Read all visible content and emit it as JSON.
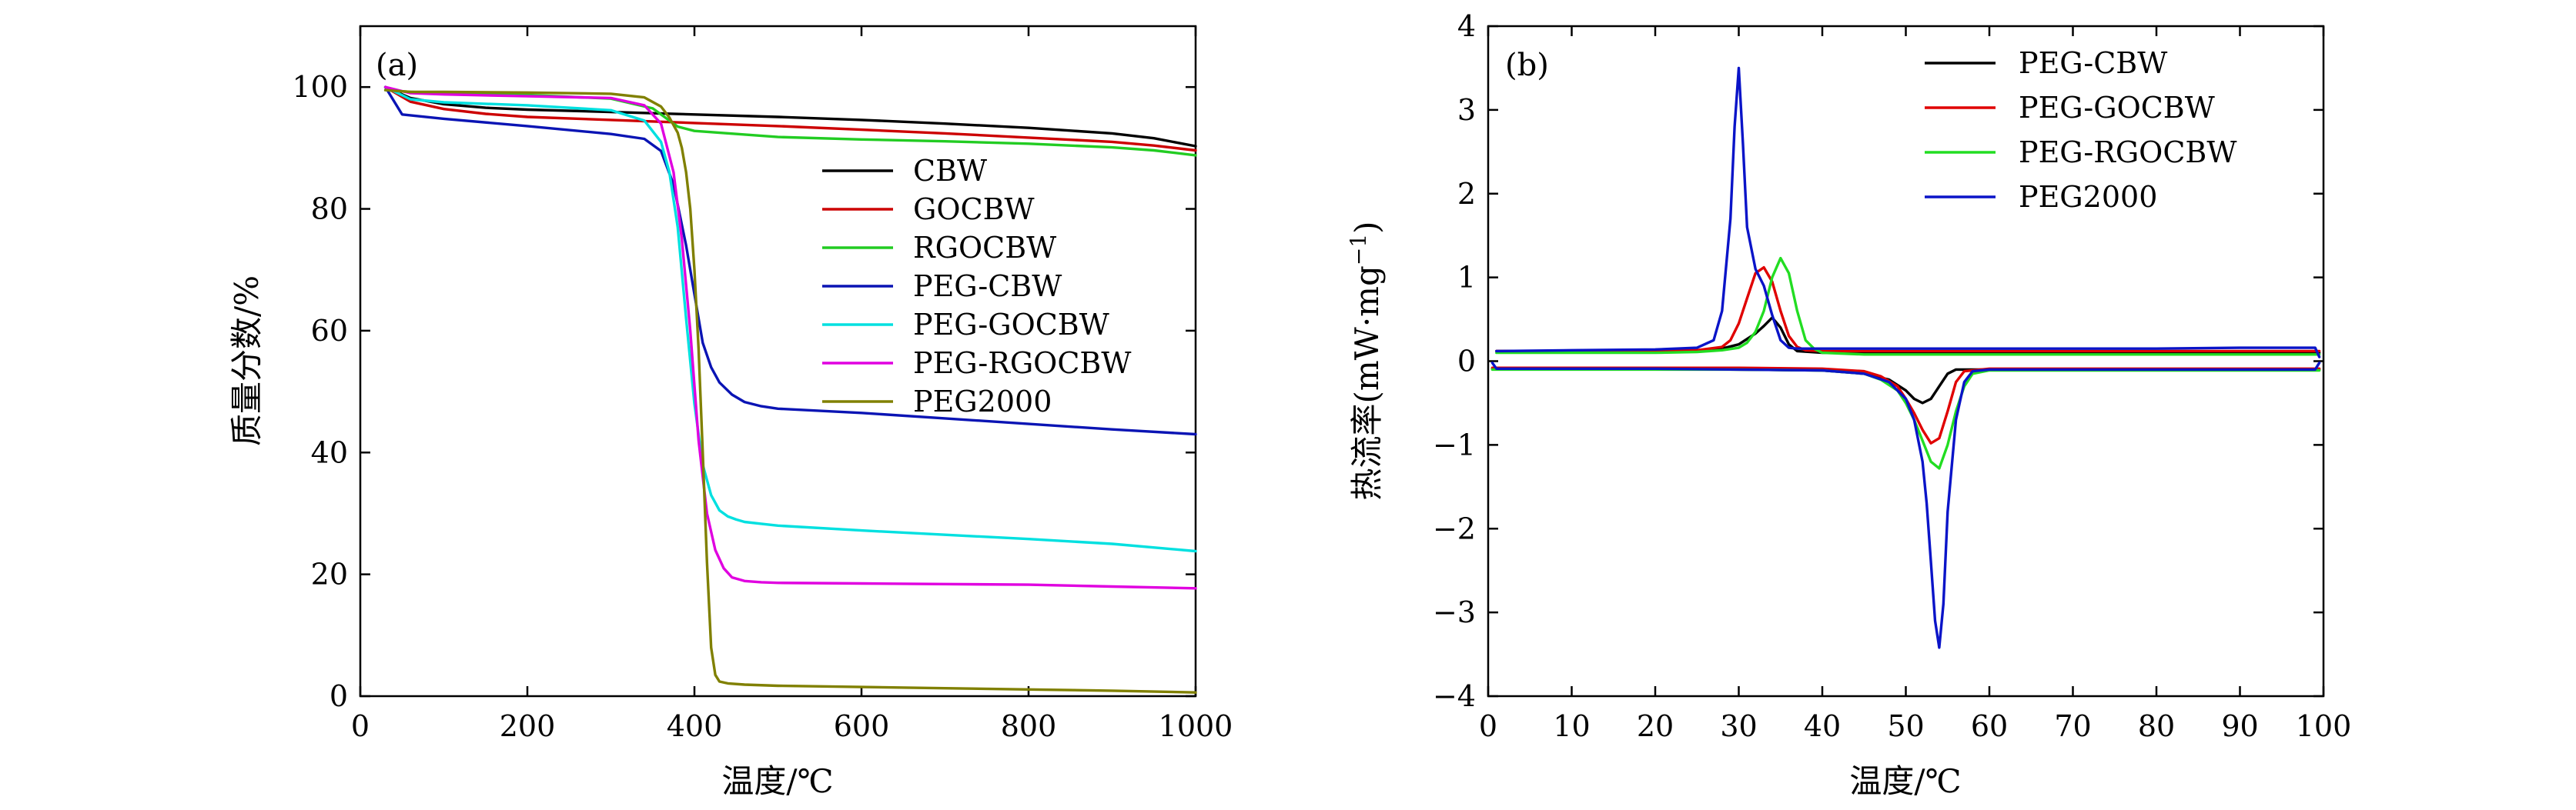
{
  "chart_data": [
    {
      "type": "line",
      "panel_label": "(a)",
      "xlabel": "温度/℃",
      "ylabel": "质量分数/%",
      "xlim": [
        0,
        1000
      ],
      "ylim": [
        0,
        110
      ],
      "xticks": [
        0,
        200,
        400,
        600,
        800,
        1000
      ],
      "yticks": [
        0,
        20,
        40,
        60,
        80,
        100
      ],
      "grid": false,
      "legend_position": "center-right",
      "series": [
        {
          "name": "CBW",
          "color": "#000000",
          "x": [
            30,
            60,
            100,
            150,
            200,
            300,
            400,
            500,
            600,
            700,
            800,
            900,
            950,
            1000
          ],
          "y": [
            100,
            98.2,
            97.2,
            96.6,
            96.3,
            95.9,
            95.5,
            95.1,
            94.6,
            94.0,
            93.3,
            92.4,
            91.6,
            90.3
          ]
        },
        {
          "name": "GOCBW",
          "color": "#cc0000",
          "x": [
            30,
            60,
            100,
            150,
            200,
            300,
            400,
            500,
            600,
            700,
            800,
            900,
            950,
            1000
          ],
          "y": [
            100,
            97.6,
            96.4,
            95.6,
            95.1,
            94.6,
            94.1,
            93.6,
            93.0,
            92.4,
            91.7,
            91.0,
            90.4,
            89.6
          ]
        },
        {
          "name": "RGOCBW",
          "color": "#22cc22",
          "x": [
            30,
            60,
            100,
            200,
            300,
            350,
            380,
            400,
            500,
            600,
            700,
            800,
            900,
            950,
            1000
          ],
          "y": [
            99.5,
            99.2,
            99.0,
            98.7,
            98.1,
            96.5,
            93.5,
            92.8,
            91.8,
            91.4,
            91.1,
            90.7,
            90.1,
            89.6,
            88.8
          ]
        },
        {
          "name": "PEG-CBW",
          "color": "#0a14b4",
          "x": [
            30,
            50,
            100,
            200,
            300,
            340,
            360,
            375,
            390,
            400,
            410,
            420,
            430,
            445,
            460,
            480,
            500,
            600,
            700,
            800,
            900,
            1000
          ],
          "y": [
            100,
            95.5,
            94.8,
            93.6,
            92.3,
            91.5,
            89.5,
            84.0,
            74.0,
            66.0,
            58.0,
            54.0,
            51.5,
            49.5,
            48.3,
            47.6,
            47.2,
            46.5,
            45.6,
            44.7,
            43.8,
            43.0
          ]
        },
        {
          "name": "PEG-GOCBW",
          "color": "#00e0e0",
          "x": [
            30,
            60,
            100,
            200,
            300,
            340,
            360,
            370,
            380,
            390,
            400,
            410,
            420,
            430,
            440,
            450,
            460,
            480,
            500,
            600,
            700,
            800,
            900,
            1000
          ],
          "y": [
            100,
            98.0,
            97.5,
            97.0,
            96.2,
            94.5,
            91.0,
            86.0,
            77.0,
            62.0,
            48.0,
            38.0,
            33.0,
            30.5,
            29.5,
            29.0,
            28.6,
            28.3,
            28.0,
            27.2,
            26.5,
            25.8,
            25.0,
            23.8
          ]
        },
        {
          "name": "PEG-RGOCBW",
          "color": "#e000e0",
          "x": [
            30,
            60,
            100,
            200,
            300,
            340,
            360,
            375,
            385,
            395,
            405,
            415,
            425,
            435,
            445,
            460,
            480,
            500,
            600,
            700,
            800,
            900,
            1000
          ],
          "y": [
            100,
            99.0,
            98.8,
            98.5,
            98.2,
            97.0,
            94.0,
            86.0,
            75.0,
            60.0,
            42.0,
            30.0,
            24.0,
            21.0,
            19.5,
            18.9,
            18.7,
            18.6,
            18.5,
            18.4,
            18.3,
            18.0,
            17.7
          ]
        },
        {
          "name": "PEG2000",
          "color": "#808000",
          "x": [
            30,
            60,
            100,
            200,
            300,
            340,
            360,
            370,
            380,
            385,
            390,
            395,
            400,
            405,
            410,
            415,
            420,
            425,
            430,
            440,
            460,
            500,
            600,
            700,
            800,
            900,
            1000
          ],
          "y": [
            99.5,
            99.2,
            99.2,
            99.1,
            98.9,
            98.3,
            96.8,
            95.0,
            92.5,
            90.0,
            86.0,
            80.0,
            70.0,
            57.0,
            40.0,
            22.0,
            8.0,
            3.5,
            2.4,
            2.1,
            1.9,
            1.7,
            1.5,
            1.3,
            1.1,
            0.9,
            0.6
          ]
        }
      ]
    },
    {
      "type": "line",
      "panel_label": "(b)",
      "xlabel": "温度/℃",
      "ylabel": "热流率(mW·mg",
      "ylabel_sup": "−1",
      "ylabel_tail": ")",
      "xlim": [
        0,
        100
      ],
      "ylim": [
        -4,
        4
      ],
      "xticks": [
        0,
        10,
        20,
        30,
        40,
        50,
        60,
        70,
        80,
        90,
        100
      ],
      "yticks": [
        -4,
        -3,
        -2,
        -1,
        0,
        1,
        2,
        3,
        4
      ],
      "ytick_labels": [
        "−4",
        "−3",
        "−2",
        "−1",
        "0",
        "1",
        "2",
        "3",
        "4"
      ],
      "grid": false,
      "legend_position": "top-right",
      "series": [
        {
          "name": "PEG-CBW",
          "color": "#000000",
          "segments": [
            {
              "x": [
                1,
                10,
                20,
                25,
                28,
                30,
                32,
                33,
                34,
                35,
                36,
                37,
                40,
                50,
                60,
                70,
                80,
                90,
                99.5
              ],
              "y": [
                0.12,
                0.12,
                0.12,
                0.13,
                0.15,
                0.2,
                0.33,
                0.42,
                0.52,
                0.4,
                0.2,
                0.12,
                0.1,
                0.1,
                0.1,
                0.1,
                0.1,
                0.1,
                0.1
              ]
            },
            {
              "x": [
                0.5,
                10,
                20,
                30,
                40,
                45,
                48,
                50,
                51,
                52,
                53,
                54,
                55,
                56,
                60,
                70,
                80,
                90,
                99.5
              ],
              "y": [
                -0.09,
                -0.09,
                -0.09,
                -0.1,
                -0.11,
                -0.15,
                -0.22,
                -0.35,
                -0.45,
                -0.5,
                -0.45,
                -0.3,
                -0.15,
                -0.1,
                -0.1,
                -0.1,
                -0.1,
                -0.1,
                -0.1
              ]
            }
          ]
        },
        {
          "name": "PEG-GOCBW",
          "color": "#e00000",
          "segments": [
            {
              "x": [
                1,
                10,
                20,
                25,
                28,
                29,
                30,
                31,
                32,
                33,
                34,
                35,
                36,
                37,
                38,
                40,
                50,
                60,
                70,
                80,
                90,
                99.5
              ],
              "y": [
                0.12,
                0.12,
                0.12,
                0.13,
                0.17,
                0.25,
                0.45,
                0.75,
                1.05,
                1.12,
                0.95,
                0.6,
                0.3,
                0.17,
                0.13,
                0.12,
                0.12,
                0.12,
                0.12,
                0.12,
                0.12,
                0.12
              ]
            },
            {
              "x": [
                0.5,
                10,
                20,
                30,
                40,
                45,
                47,
                49,
                50,
                51,
                52,
                53,
                54,
                55,
                56,
                57,
                60,
                70,
                80,
                90,
                99.5
              ],
              "y": [
                -0.08,
                -0.08,
                -0.08,
                -0.08,
                -0.09,
                -0.12,
                -0.18,
                -0.3,
                -0.45,
                -0.62,
                -0.82,
                -0.98,
                -0.92,
                -0.6,
                -0.25,
                -0.12,
                -0.09,
                -0.09,
                -0.09,
                -0.09,
                -0.09
              ]
            }
          ]
        },
        {
          "name": "PEG-RGOCBW",
          "color": "#22dd22",
          "segments": [
            {
              "x": [
                1,
                10,
                20,
                25,
                28,
                30,
                31,
                32,
                33,
                34,
                35,
                36,
                37,
                38,
                39,
                40,
                45,
                50,
                60,
                70,
                80,
                90,
                99.5
              ],
              "y": [
                0.1,
                0.1,
                0.1,
                0.11,
                0.13,
                0.16,
                0.22,
                0.35,
                0.6,
                1.0,
                1.23,
                1.05,
                0.6,
                0.25,
                0.15,
                0.1,
                0.08,
                0.08,
                0.08,
                0.08,
                0.08,
                0.08,
                0.08
              ]
            },
            {
              "x": [
                0.5,
                10,
                20,
                30,
                40,
                45,
                47,
                49,
                50,
                51,
                52,
                53,
                54,
                55,
                56,
                57,
                58,
                60,
                70,
                80,
                90,
                99.5
              ],
              "y": [
                -0.1,
                -0.1,
                -0.1,
                -0.1,
                -0.11,
                -0.15,
                -0.22,
                -0.35,
                -0.5,
                -0.7,
                -0.95,
                -1.2,
                -1.28,
                -1.0,
                -0.6,
                -0.3,
                -0.15,
                -0.11,
                -0.11,
                -0.11,
                -0.11,
                -0.11
              ]
            }
          ]
        },
        {
          "name": "PEG2000",
          "color": "#0a14c8",
          "segments": [
            {
              "x": [
                1,
                10,
                20,
                25,
                27,
                28,
                29,
                29.5,
                30,
                30.5,
                31,
                32,
                33,
                34,
                35,
                36,
                37,
                38,
                40,
                50,
                60,
                70,
                80,
                90,
                99,
                99.5
              ],
              "y": [
                0.12,
                0.13,
                0.14,
                0.16,
                0.25,
                0.6,
                1.7,
                2.8,
                3.5,
                2.6,
                1.6,
                1.1,
                0.9,
                0.55,
                0.25,
                0.16,
                0.15,
                0.15,
                0.15,
                0.15,
                0.15,
                0.15,
                0.15,
                0.16,
                0.16,
                0.05
              ]
            },
            {
              "x": [
                0.5,
                1,
                10,
                20,
                30,
                40,
                45,
                48,
                50,
                51,
                52,
                52.5,
                53,
                53.5,
                54,
                54.5,
                55,
                56,
                57,
                58,
                60,
                70,
                80,
                90,
                99,
                99.5
              ],
              "y": [
                -0.02,
                -0.09,
                -0.09,
                -0.09,
                -0.1,
                -0.11,
                -0.15,
                -0.25,
                -0.45,
                -0.7,
                -1.2,
                -1.7,
                -2.4,
                -3.1,
                -3.42,
                -2.9,
                -1.8,
                -0.7,
                -0.25,
                -0.12,
                -0.1,
                -0.1,
                -0.1,
                -0.1,
                -0.1,
                -0.02
              ]
            }
          ]
        }
      ]
    }
  ]
}
